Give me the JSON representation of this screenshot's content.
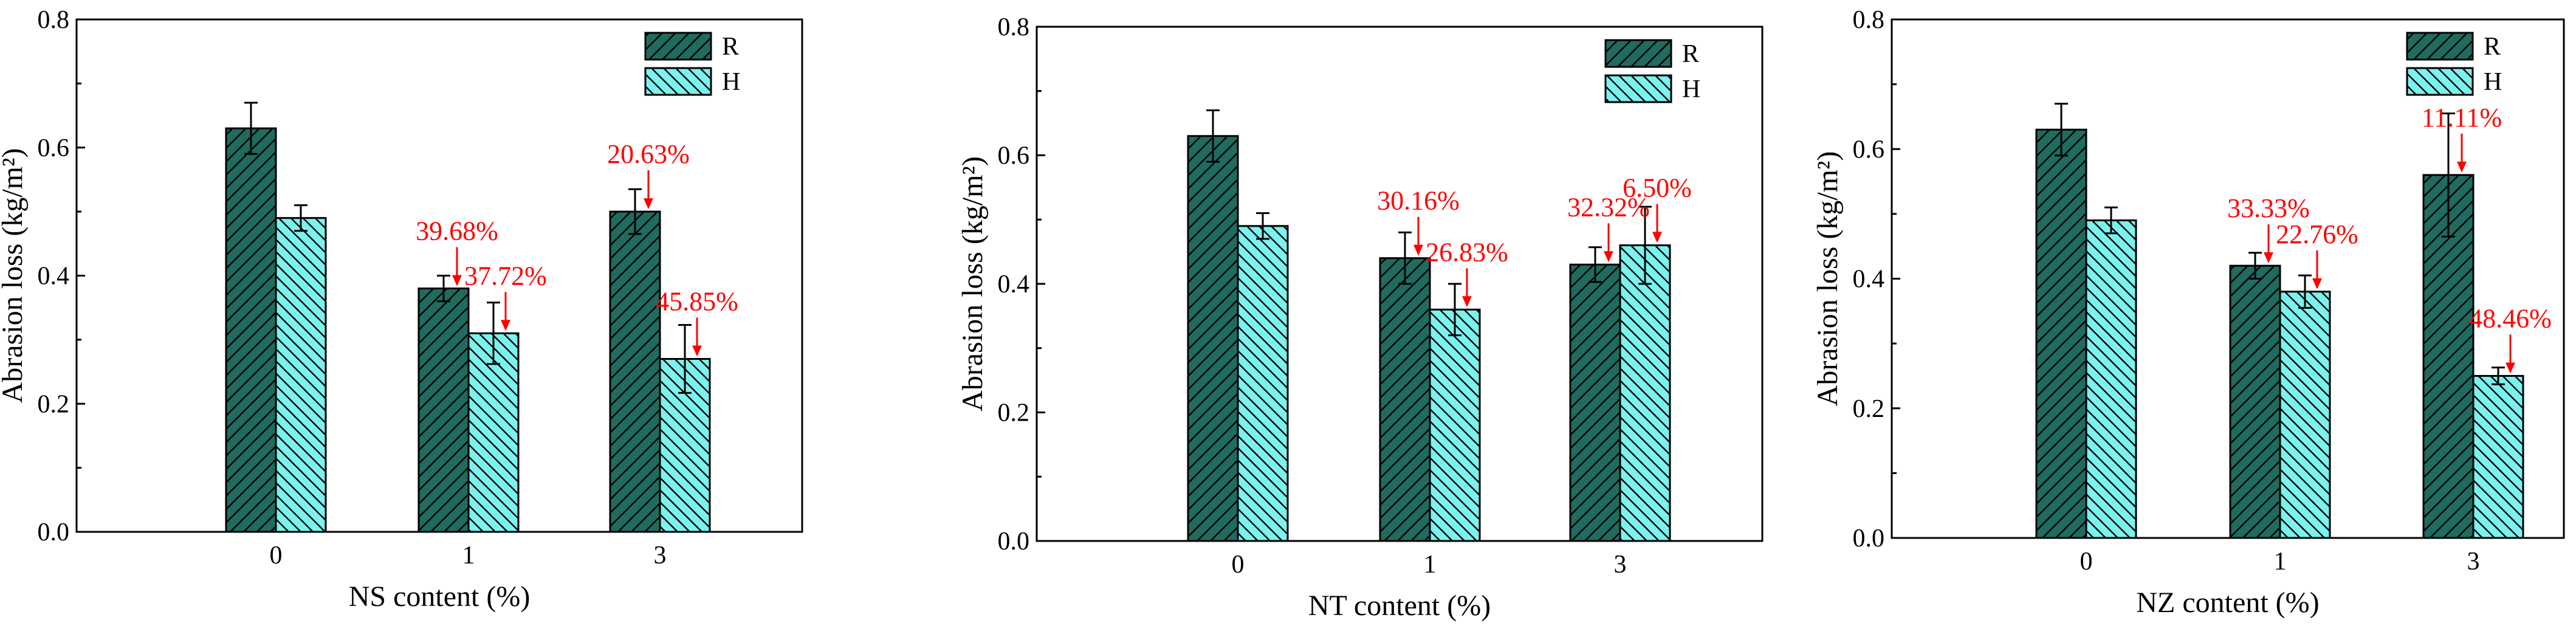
{
  "colors": {
    "R": "#1f6b60",
    "H": "#7af2ee",
    "annotation": "#ff0000",
    "axis": "#000000"
  },
  "chart_data": [
    {
      "type": "bar",
      "categories": [
        "0",
        "1",
        "3"
      ],
      "series": [
        {
          "name": "R",
          "values": [
            0.63,
            0.38,
            0.5
          ],
          "errors": [
            0.04,
            0.02,
            0.035
          ]
        },
        {
          "name": "H",
          "values": [
            0.49,
            0.31,
            0.27
          ],
          "errors": [
            0.02,
            0.048,
            0.053
          ]
        }
      ],
      "xlabel": "NS content (%)",
      "ylabel": "Abrasion loss (kg/m²)",
      "ylim": [
        0,
        0.8
      ],
      "yticks": [
        "0.0",
        "0.2",
        "0.4",
        "0.6",
        "0.8"
      ],
      "legend": [
        "R",
        "H"
      ],
      "legend_position": "top-right",
      "annotations": [
        {
          "text": "39.68%",
          "series": "R",
          "category": "1"
        },
        {
          "text": "37.72%",
          "series": "H",
          "category": "1"
        },
        {
          "text": "20.63%",
          "series": "R",
          "category": "3"
        },
        {
          "text": "45.85%",
          "series": "H",
          "category": "3"
        }
      ]
    },
    {
      "type": "bar",
      "categories": [
        "0",
        "1",
        "3"
      ],
      "series": [
        {
          "name": "R",
          "values": [
            0.63,
            0.44,
            0.43
          ],
          "errors": [
            0.04,
            0.04,
            0.027
          ]
        },
        {
          "name": "H",
          "values": [
            0.49,
            0.36,
            0.46
          ],
          "errors": [
            0.02,
            0.04,
            0.06
          ]
        }
      ],
      "xlabel": "NT content (%)",
      "ylabel": "Abrasion loss (kg/m²)",
      "ylim": [
        0,
        0.8
      ],
      "yticks": [
        "0.0",
        "0.2",
        "0.4",
        "0.6",
        "0.8"
      ],
      "legend": [
        "R",
        "H"
      ],
      "legend_position": "top-right",
      "annotations": [
        {
          "text": "30.16%",
          "series": "R",
          "category": "1"
        },
        {
          "text": "26.83%",
          "series": "H",
          "category": "1"
        },
        {
          "text": "32.32%",
          "series": "R",
          "category": "3"
        },
        {
          "text": "6.50%",
          "series": "H",
          "category": "3"
        }
      ]
    },
    {
      "type": "bar",
      "categories": [
        "0",
        "1",
        "3"
      ],
      "series": [
        {
          "name": "R",
          "values": [
            0.63,
            0.42,
            0.56
          ],
          "errors": [
            0.04,
            0.02,
            0.095
          ]
        },
        {
          "name": "H",
          "values": [
            0.49,
            0.38,
            0.25
          ],
          "errors": [
            0.02,
            0.025,
            0.013
          ]
        }
      ],
      "xlabel": "NZ content (%)",
      "ylabel": "Abrasion loss (kg/m²)",
      "ylim": [
        0,
        0.8
      ],
      "yticks": [
        "0.0",
        "0.2",
        "0.4",
        "0.6",
        "0.8"
      ],
      "legend": [
        "R",
        "H"
      ],
      "legend_position": "top-right",
      "annotations": [
        {
          "text": "33.33%",
          "series": "R",
          "category": "1"
        },
        {
          "text": "22.76%",
          "series": "H",
          "category": "1"
        },
        {
          "text": "11.11%",
          "series": "R",
          "category": "3"
        },
        {
          "text": "48.46%",
          "series": "H",
          "category": "3"
        }
      ]
    }
  ]
}
